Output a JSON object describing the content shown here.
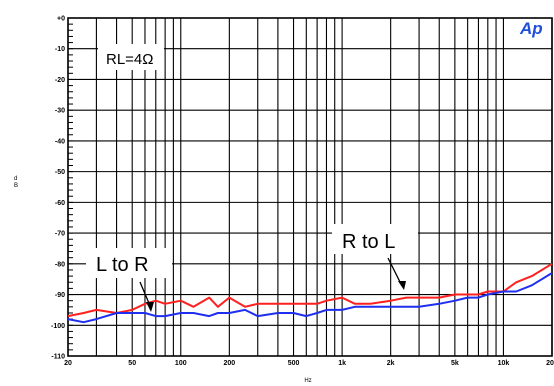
{
  "logo": "Ap",
  "chart_data": {
    "type": "line",
    "xlabel": "Hz",
    "ylabel": "d B",
    "x_scale": "log",
    "xlim": [
      20,
      20000
    ],
    "ylim": [
      -110,
      0
    ],
    "grid": true,
    "x_ticks": [
      20,
      50,
      100,
      200,
      500,
      1000,
      2000,
      5000,
      10000,
      20000
    ],
    "x_tick_labels": [
      "20",
      "50",
      "100",
      "200",
      "500",
      "1k",
      "2k",
      "5k",
      "10k",
      "20k"
    ],
    "y_ticks": [
      0,
      -10,
      -20,
      -30,
      -40,
      -50,
      -60,
      -70,
      -80,
      -90,
      -100,
      -110
    ],
    "y_tick_labels": [
      "+0",
      "-10",
      "-20",
      "-30",
      "-40",
      "-50",
      "-60",
      "-70",
      "-80",
      "-90",
      "-100",
      "-110"
    ],
    "annotations": {
      "rl": "RL=4Ω",
      "l_to_r": "L to R",
      "r_to_l": "R to L"
    },
    "series": [
      {
        "name": "R to L",
        "color": "#ff2020",
        "x": [
          20,
          25,
          30,
          40,
          50,
          60,
          70,
          80,
          100,
          120,
          150,
          170,
          200,
          250,
          300,
          400,
          500,
          600,
          700,
          800,
          1000,
          1200,
          1500,
          2000,
          2500,
          3000,
          4000,
          5000,
          6000,
          7000,
          8000,
          10000,
          12000,
          15000,
          20000
        ],
        "values": [
          -97,
          -96,
          -95,
          -96,
          -95,
          -93,
          -92,
          -93,
          -92,
          -94,
          -91,
          -94,
          -91,
          -94,
          -93,
          -93,
          -93,
          -93,
          -93,
          -92,
          -91,
          -93,
          -93,
          -92,
          -91,
          -91,
          -91,
          -90,
          -90,
          -90,
          -89,
          -89,
          -86,
          -84,
          -80
        ]
      },
      {
        "name": "L to R",
        "color": "#1f2ff0",
        "x": [
          20,
          25,
          30,
          40,
          50,
          60,
          70,
          80,
          100,
          120,
          150,
          170,
          200,
          250,
          300,
          400,
          500,
          600,
          700,
          800,
          1000,
          1200,
          1500,
          2000,
          2500,
          3000,
          4000,
          5000,
          6000,
          7000,
          8000,
          10000,
          12000,
          15000,
          20000
        ],
        "values": [
          -98,
          -99,
          -98,
          -96,
          -96,
          -96,
          -97,
          -97,
          -96,
          -96,
          -97,
          -96,
          -96,
          -95,
          -97,
          -96,
          -96,
          -97,
          -96,
          -95,
          -95,
          -94,
          -94,
          -94,
          -94,
          -94,
          -93,
          -92,
          -91,
          -91,
          -90,
          -89,
          -89,
          -87,
          -83
        ]
      }
    ]
  }
}
